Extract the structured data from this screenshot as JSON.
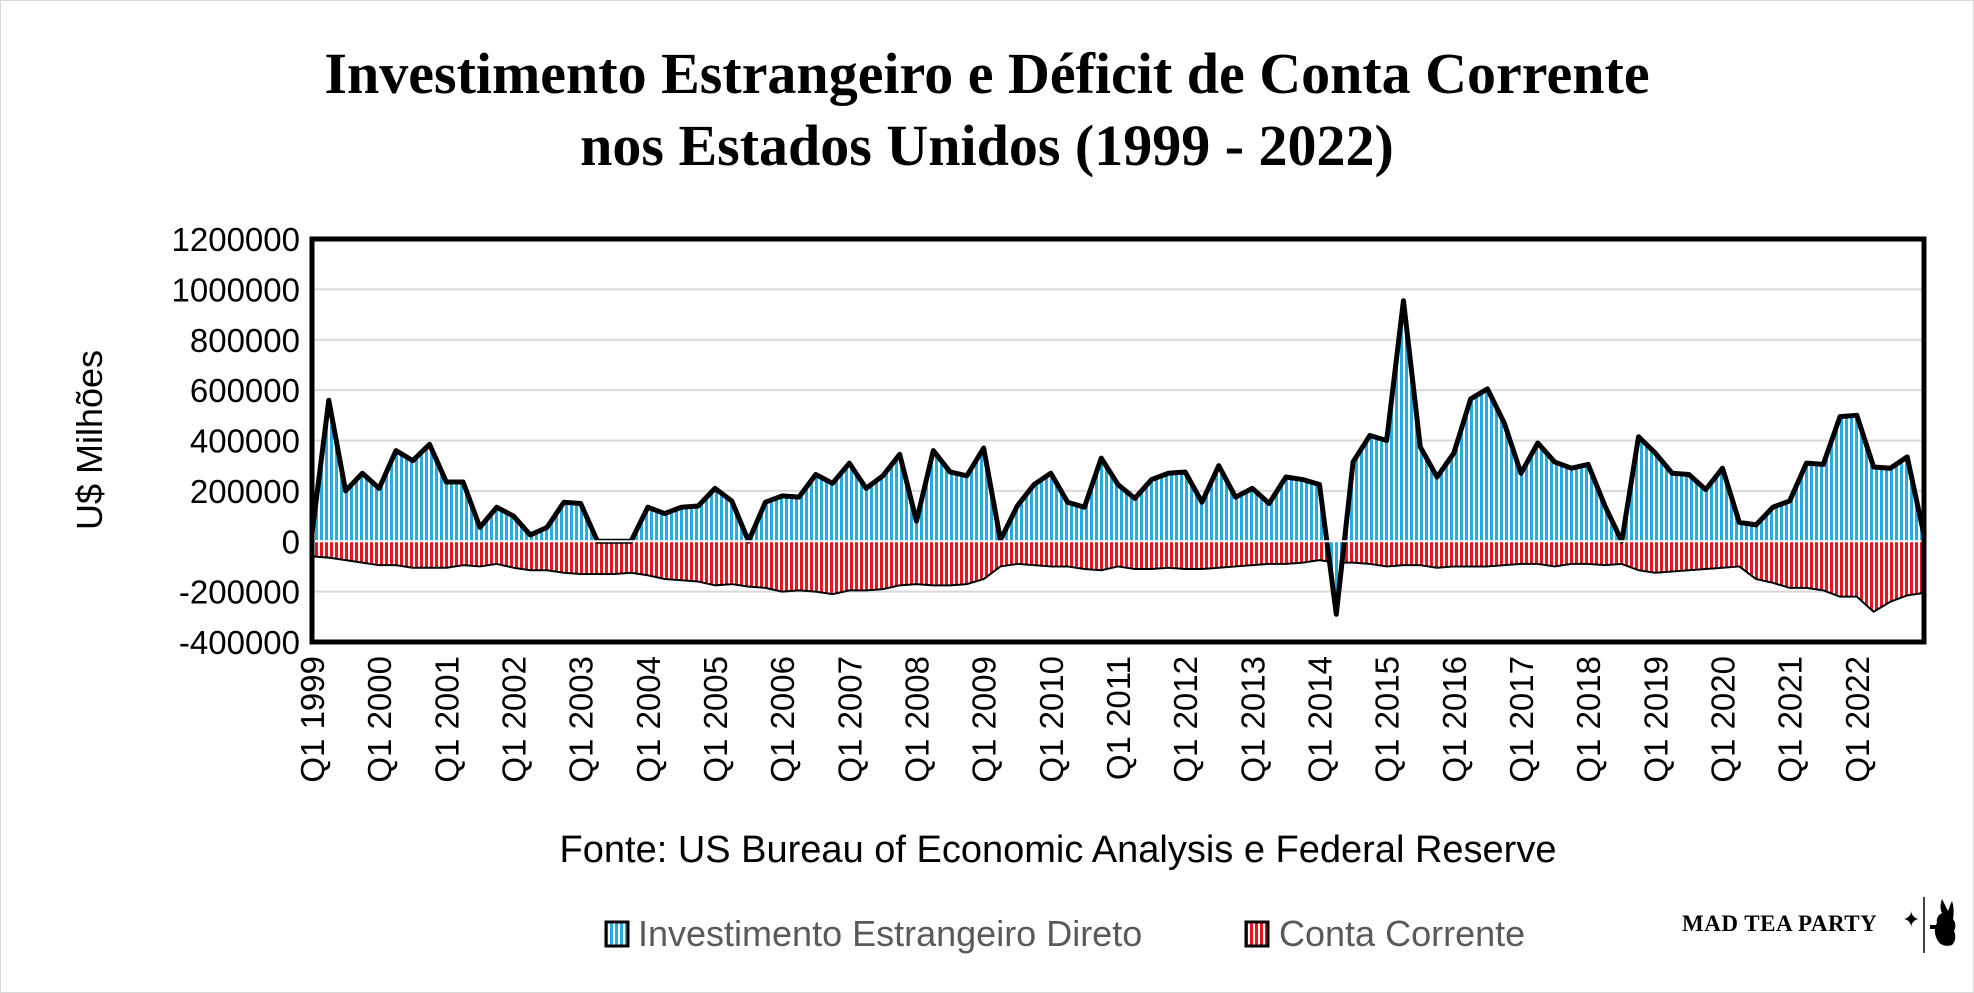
{
  "chart_data": {
    "type": "area",
    "title_line1": "Investimento Estrangeiro e Déficit de Conta Corrente",
    "title_line2": "nos Estados Unidos (1999 - 2022)",
    "ylabel": "U$ Milhões",
    "xlabel": "Fonte: US Bureau of Economic Analysis e Federal Reserve",
    "ylim": [
      -400000,
      1200000
    ],
    "yticks": [
      "1200000",
      "1000000",
      "800000",
      "600000",
      "400000",
      "200000",
      "0",
      "-200000",
      "-400000"
    ],
    "ytick_values": [
      1200000,
      1000000,
      800000,
      600000,
      400000,
      200000,
      0,
      -200000,
      -400000
    ],
    "xtick_labels": [
      "Q1 1999",
      "Q1 2000",
      "Q1 2001",
      "Q1 2002",
      "Q1 2003",
      "Q1 2004",
      "Q1 2005",
      "Q1 2006",
      "Q1 2007",
      "Q1 2008",
      "Q1 2009",
      "Q1 2010",
      "Q1 2011",
      "Q1 2012",
      "Q1 2013",
      "Q1 2014",
      "Q1 2015",
      "Q1 2016",
      "Q1 2017",
      "Q1 2018",
      "Q1 2019",
      "Q1 2020",
      "Q1 2021",
      "Q1 2022"
    ],
    "grid": true,
    "legend_position": "bottom",
    "series": [
      {
        "name": "Investimento Estrangeiro Direto",
        "color": "#29abe2",
        "values": [
          30000,
          560000,
          200000,
          270000,
          210000,
          360000,
          320000,
          385000,
          235000,
          235000,
          55000,
          135000,
          100000,
          25000,
          55000,
          155000,
          150000,
          0,
          0,
          0,
          135000,
          110000,
          135000,
          140000,
          210000,
          160000,
          0,
          155000,
          180000,
          175000,
          265000,
          230000,
          310000,
          210000,
          260000,
          345000,
          80000,
          360000,
          275000,
          260000,
          370000,
          5000,
          140000,
          225000,
          270000,
          155000,
          135000,
          330000,
          225000,
          170000,
          245000,
          270000,
          275000,
          155000,
          300000,
          175000,
          210000,
          150000,
          255000,
          245000,
          225000,
          -290000,
          315000,
          420000,
          400000,
          955000,
          375000,
          255000,
          350000,
          565000,
          605000,
          470000,
          270000,
          390000,
          315000,
          290000,
          305000,
          140000,
          0,
          415000,
          350000,
          270000,
          265000,
          205000,
          290000,
          75000,
          65000,
          135000,
          160000,
          310000,
          305000,
          495000,
          500000,
          295000,
          290000,
          335000,
          25000
        ]
      },
      {
        "name": "Conta Corrente",
        "color": "#e8151f",
        "values": [
          -60000,
          -65000,
          -75000,
          -85000,
          -95000,
          -95000,
          -105000,
          -105000,
          -105000,
          -95000,
          -100000,
          -90000,
          -105000,
          -115000,
          -115000,
          -125000,
          -130000,
          -130000,
          -130000,
          -125000,
          -135000,
          -150000,
          -155000,
          -160000,
          -175000,
          -170000,
          -180000,
          -185000,
          -200000,
          -195000,
          -200000,
          -210000,
          -195000,
          -195000,
          -190000,
          -175000,
          -170000,
          -175000,
          -175000,
          -170000,
          -150000,
          -100000,
          -90000,
          -95000,
          -100000,
          -100000,
          -110000,
          -115000,
          -100000,
          -110000,
          -110000,
          -105000,
          -110000,
          -110000,
          -105000,
          -100000,
          -95000,
          -90000,
          -90000,
          -85000,
          -75000,
          -85000,
          -85000,
          -90000,
          -100000,
          -95000,
          -95000,
          -105000,
          -100000,
          -100000,
          -100000,
          -95000,
          -90000,
          -90000,
          -100000,
          -90000,
          -90000,
          -95000,
          -90000,
          -115000,
          -125000,
          -120000,
          -115000,
          -110000,
          -105000,
          -100000,
          -150000,
          -165000,
          -185000,
          -185000,
          -195000,
          -220000,
          -220000,
          -280000,
          -240000,
          -215000,
          -205000
        ]
      }
    ]
  },
  "legend": {
    "fdi_label": "Investimento Estrangeiro Direto",
    "ca_label": "Conta Corrente"
  },
  "logo": {
    "text": "MAD TEA PARTY"
  }
}
